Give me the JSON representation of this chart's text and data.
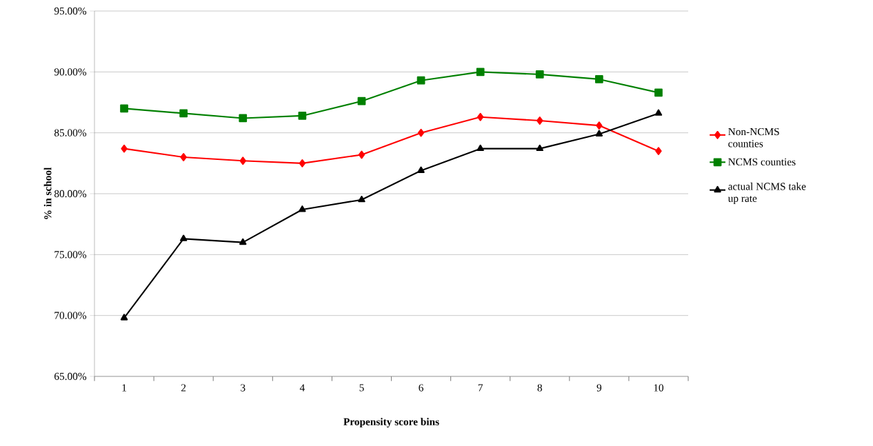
{
  "chart_data": {
    "type": "line",
    "xlabel": "Propensity score bins",
    "ylabel": "% in school",
    "categories": [
      "1",
      "2",
      "3",
      "4",
      "5",
      "6",
      "7",
      "8",
      "9",
      "10"
    ],
    "series": [
      {
        "name": "Non-NCMS counties",
        "color": "#ff0000",
        "marker": "diamond",
        "values": [
          83.7,
          83.0,
          82.7,
          82.5,
          83.2,
          85.0,
          86.3,
          86.0,
          85.6,
          83.5
        ]
      },
      {
        "name": "NCMS counties",
        "color": "#008000",
        "marker": "square",
        "values": [
          87.0,
          86.6,
          86.2,
          86.4,
          87.6,
          89.3,
          90.0,
          89.8,
          89.4,
          88.3
        ]
      },
      {
        "name": "actual NCMS take up rate",
        "color": "#000000",
        "marker": "triangle",
        "values": [
          69.8,
          76.3,
          76.0,
          78.7,
          79.5,
          81.9,
          83.7,
          83.7,
          84.9,
          86.6
        ]
      }
    ],
    "ylim": [
      65,
      95
    ],
    "yticks": [
      {
        "value": 65,
        "label": "65.00%"
      },
      {
        "value": 70,
        "label": "70.00%"
      },
      {
        "value": 75,
        "label": "75.00%"
      },
      {
        "value": 80,
        "label": "80.00%"
      },
      {
        "value": 85,
        "label": "85.00%"
      },
      {
        "value": 90,
        "label": "90.00%"
      },
      {
        "value": 95,
        "label": "95.00%"
      }
    ],
    "grid": "y",
    "legend": "right"
  }
}
